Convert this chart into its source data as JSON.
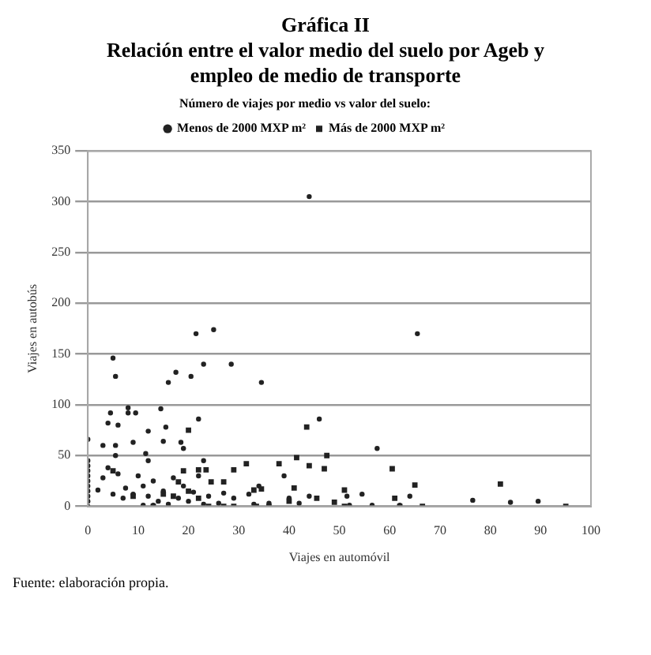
{
  "chart_data": {
    "type": "scatter",
    "title": "Gráfica II",
    "subtitle": "Relación entre el valor medio del suelo por Ageb y empleo de medio de transporte",
    "xlabel": "Viajes en automóvil",
    "ylabel": "Viajes en autobús",
    "legend_title": "Número de viajes por medio vs valor del suelo:",
    "series": [
      {
        "name": "Menos de 2000 MXP m²",
        "color": "#222222",
        "marker": "circle",
        "x": [
          44,
          65.5,
          21.5,
          25,
          5,
          5.5,
          16,
          17.5,
          20.5,
          23,
          28.5,
          34.5,
          0,
          3,
          4,
          4.5,
          5.5,
          6,
          8,
          8,
          9.5,
          14.5,
          12,
          15.5,
          15,
          18.5,
          19,
          22,
          46,
          57.5,
          9,
          5.5,
          11.5,
          12,
          0,
          0,
          0,
          0,
          0,
          0,
          0,
          0,
          0,
          0,
          2,
          3,
          4,
          5,
          6,
          7,
          7.5,
          9,
          10,
          11,
          12,
          13,
          14,
          15,
          16,
          17,
          18,
          19,
          20,
          21,
          22,
          23,
          24,
          26,
          27,
          29,
          32,
          33,
          34,
          36,
          39,
          40,
          42,
          44,
          51.5,
          54.5,
          64,
          76.5,
          84,
          89.5,
          56.5,
          52,
          62,
          23,
          11,
          13
        ],
        "values": [
          305,
          170,
          170,
          174,
          146,
          128,
          122,
          132,
          128,
          140,
          140,
          122,
          66,
          60,
          82,
          92,
          60,
          80,
          97,
          92,
          92,
          96,
          74,
          78,
          64,
          63,
          57,
          86,
          86,
          57,
          63,
          50,
          52,
          45,
          45,
          40,
          35,
          30,
          25,
          20,
          15,
          10,
          5,
          0,
          16,
          28,
          38,
          12,
          32,
          8,
          18,
          12,
          30,
          20,
          10,
          25,
          5,
          15,
          2,
          28,
          8,
          20,
          5,
          14,
          30,
          2,
          10,
          3,
          13,
          8,
          12,
          2,
          20,
          3,
          30,
          8,
          3,
          10,
          10,
          12,
          10,
          6,
          4,
          5,
          1,
          1,
          1,
          45,
          1,
          1
        ]
      },
      {
        "name": "Más de 2000 MXP m²",
        "color": "#222222",
        "marker": "square",
        "x": [
          20,
          43.5,
          47.5,
          41.5,
          44,
          47,
          60.5,
          31.5,
          38,
          29,
          19,
          22,
          23.5,
          27,
          24.5,
          18,
          33,
          34.5,
          41,
          51,
          61,
          65,
          82,
          45.5,
          49,
          62,
          66.5,
          95,
          51,
          27,
          29,
          33.5,
          20,
          15,
          9,
          5,
          6,
          17,
          22,
          40,
          13,
          24,
          36
        ],
        "values": [
          75,
          78,
          50,
          48,
          40,
          37,
          37,
          42,
          42,
          36,
          35,
          36,
          36,
          24,
          24,
          24,
          16,
          17,
          18,
          16,
          8,
          21,
          22,
          8,
          4,
          0,
          0,
          0,
          0,
          0,
          0,
          0,
          15,
          12,
          10,
          35,
          null,
          10,
          8,
          5,
          0,
          0,
          0
        ]
      }
    ],
    "xlim": [
      0,
      100
    ],
    "xticks": [
      0,
      10,
      20,
      30,
      40,
      50,
      60,
      70,
      80,
      90,
      100
    ],
    "ylim": [
      0,
      350
    ],
    "yticks": [
      0,
      50,
      100,
      150,
      200,
      250,
      300,
      350
    ],
    "grid": "y",
    "legend": "top",
    "annotations": [
      "Fuente: elaboración propia."
    ]
  }
}
